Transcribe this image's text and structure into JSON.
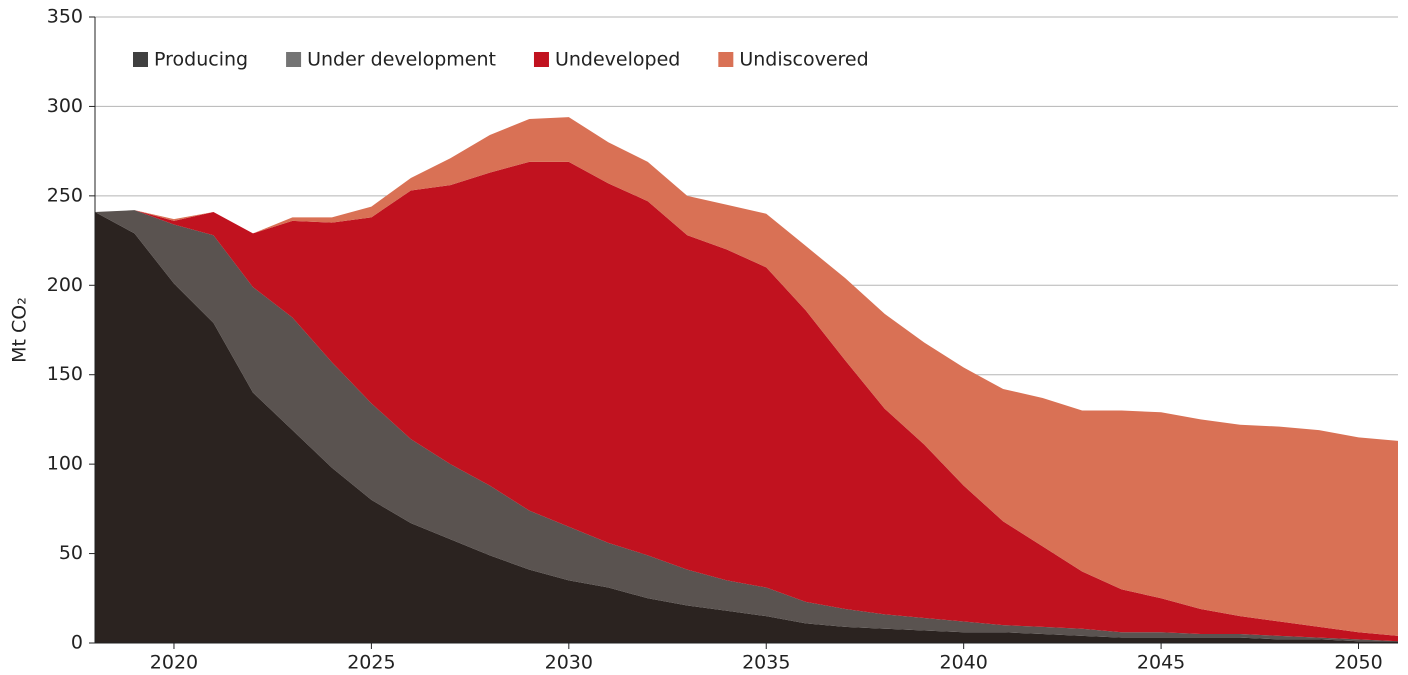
{
  "chart_data": {
    "type": "stacked-area",
    "y_label": "Mt CO₂",
    "x": [
      2018,
      2019,
      2020,
      2021,
      2022,
      2023,
      2024,
      2025,
      2026,
      2027,
      2028,
      2029,
      2030,
      2031,
      2032,
      2033,
      2034,
      2035,
      2036,
      2037,
      2038,
      2039,
      2040,
      2041,
      2042,
      2043,
      2044,
      2045,
      2046,
      2047,
      2048,
      2049,
      2050,
      2051
    ],
    "series": [
      {
        "name": "Producing",
        "color": "#2b2320",
        "legend_color": "#404040",
        "values": [
          241,
          229,
          201,
          179,
          140,
          119,
          98,
          80,
          67,
          58,
          49,
          41,
          35,
          31,
          25,
          21,
          18,
          15,
          11,
          9,
          8,
          7,
          6,
          6,
          5,
          4,
          3,
          3,
          3,
          3,
          2,
          2,
          1,
          1
        ]
      },
      {
        "name": "Under development",
        "color": "#5a5350",
        "legend_color": "#747474",
        "values": [
          0,
          13,
          33,
          49,
          59,
          63,
          59,
          54,
          47,
          42,
          39,
          33,
          30,
          25,
          24,
          20,
          17,
          16,
          12,
          10,
          8,
          7,
          6,
          4,
          4,
          4,
          3,
          3,
          2,
          2,
          2,
          1,
          1,
          0
        ]
      },
      {
        "name": "Undeveloped",
        "color": "#c1121f",
        "legend_color": "#c1121f",
        "values": [
          0,
          0,
          2,
          13,
          30,
          54,
          78,
          104,
          139,
          156,
          175,
          195,
          204,
          201,
          198,
          187,
          185,
          179,
          163,
          139,
          115,
          97,
          76,
          58,
          45,
          32,
          24,
          19,
          14,
          10,
          8,
          6,
          4,
          3
        ]
      },
      {
        "name": "Undiscovered",
        "color": "#d97155",
        "legend_color": "#d97155",
        "values": [
          0,
          0,
          1,
          0,
          0,
          2,
          3,
          6,
          7,
          15,
          21,
          24,
          25,
          23,
          22,
          22,
          25,
          30,
          36,
          46,
          53,
          57,
          66,
          74,
          83,
          90,
          100,
          104,
          106,
          107,
          109,
          110,
          109,
          109
        ]
      }
    ],
    "xlim": [
      2018,
      2051
    ],
    "xticks": [
      2020,
      2025,
      2030,
      2035,
      2040,
      2045,
      2050
    ],
    "ylim": [
      0,
      350
    ],
    "yticks": [
      0,
      50,
      100,
      150,
      200,
      250,
      300,
      350
    ],
    "grid": true,
    "legend": "top-left"
  }
}
